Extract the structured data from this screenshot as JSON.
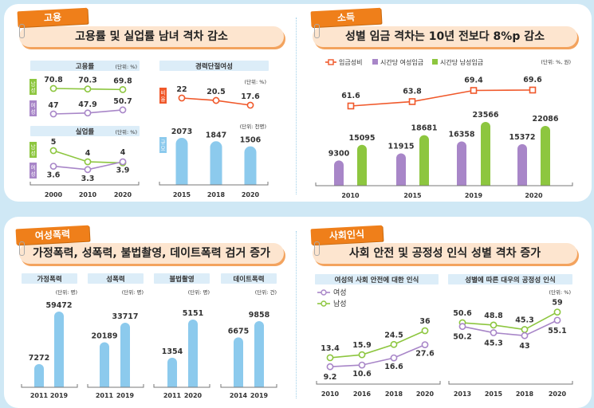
{
  "sections": [
    {
      "tag": "고용",
      "title": "고용률 및 실업률 남녀 격차 감소"
    },
    {
      "tag": "소득",
      "title": "성별 임금 격차는 10년 전보다 8%p 감소"
    },
    {
      "tag": "여성폭력",
      "title": "가정폭력, 성폭력, 불법촬영, 데이트폭력 검거 증가"
    },
    {
      "tag": "사회인식",
      "title": "사회 안전 및 공정성 인식 성별 격차 증가"
    }
  ],
  "colors": {
    "male": "#8dc63f",
    "female": "#a886c8",
    "ratio": "#f0582a",
    "bar_blue": "#8ccaed",
    "tag": "#ef7f1a",
    "background": "#cfe8f5"
  },
  "chart_data": [
    {
      "type": "line",
      "title": "고용률",
      "unit": "(단위: %)",
      "categories": [
        "2000",
        "2010",
        "2020"
      ],
      "series": [
        {
          "name": "남성",
          "values": [
            70.8,
            70.3,
            69.8
          ]
        },
        {
          "name": "여성",
          "values": [
            47.0,
            47.9,
            50.7
          ]
        }
      ]
    },
    {
      "type": "line",
      "title": "실업률",
      "unit": "(단위: %)",
      "categories": [
        "2000",
        "2010",
        "2020"
      ],
      "series": [
        {
          "name": "남성",
          "values": [
            5.0,
            4.0,
            3.9
          ]
        },
        {
          "name": "여성",
          "values": [
            3.6,
            3.3,
            4.0
          ]
        }
      ]
    },
    {
      "type": "line",
      "title": "경력단절여성",
      "unit": "(단위: %)",
      "categories": [
        "2015",
        "2018",
        "2020"
      ],
      "series": [
        {
          "name": "비율",
          "values": [
            22.0,
            20.5,
            17.6
          ]
        }
      ]
    },
    {
      "type": "bar",
      "title": "",
      "unit": "(단위: 천명)",
      "categories": [
        "2015",
        "2018",
        "2020"
      ],
      "series": [
        {
          "name": "규모",
          "values": [
            2073,
            1847,
            1506
          ]
        }
      ]
    },
    {
      "type": "bar",
      "title": "",
      "unit": "(단위: %, 원)",
      "categories": [
        "2010",
        "2015",
        "2019",
        "2020"
      ],
      "series": [
        {
          "name": "임금성비",
          "type": "line",
          "values": [
            61.6,
            63.8,
            69.4,
            69.6
          ]
        },
        {
          "name": "시간당 여성임금",
          "values": [
            9300,
            11915,
            16358,
            15372
          ]
        },
        {
          "name": "시간당 남성임금",
          "values": [
            15095,
            18681,
            23566,
            22086
          ]
        }
      ],
      "legend": "top-left"
    },
    {
      "type": "bar",
      "title": "가정폭력",
      "unit": "(단위: 명)",
      "categories": [
        "2011",
        "2019"
      ],
      "series": [
        {
          "values": [
            7272,
            59472
          ]
        }
      ]
    },
    {
      "type": "bar",
      "title": "성폭력",
      "unit": "(단위: 명)",
      "categories": [
        "2011",
        "2019"
      ],
      "series": [
        {
          "values": [
            20189,
            33717
          ]
        }
      ]
    },
    {
      "type": "bar",
      "title": "불법촬영",
      "unit": "(단위: 명)",
      "categories": [
        "2011",
        "2020"
      ],
      "series": [
        {
          "values": [
            1354,
            5151
          ]
        }
      ]
    },
    {
      "type": "bar",
      "title": "데이트폭력",
      "unit": "(단위: 건)",
      "categories": [
        "2014",
        "2019"
      ],
      "series": [
        {
          "values": [
            6675,
            9858
          ]
        }
      ]
    },
    {
      "type": "line",
      "title": "여성의 사회 안전에 대한 인식",
      "unit": "",
      "categories": [
        "2010",
        "2016",
        "2018",
        "2020"
      ],
      "series": [
        {
          "name": "여성",
          "values": [
            9.2,
            10.6,
            16.6,
            27.6
          ]
        },
        {
          "name": "남성",
          "values": [
            13.4,
            15.9,
            24.5,
            36.0
          ]
        }
      ],
      "legend": "top-left"
    },
    {
      "type": "line",
      "title": "성별에 따른 대우의 공정성 인식",
      "unit": "(단위: %)",
      "categories": [
        "2013",
        "2015",
        "2018",
        "2020"
      ],
      "series": [
        {
          "name": "여성",
          "values": [
            50.2,
            45.3,
            43.0,
            55.1
          ]
        },
        {
          "name": "남성",
          "values": [
            50.6,
            48.8,
            45.3,
            59.0
          ]
        }
      ]
    }
  ]
}
